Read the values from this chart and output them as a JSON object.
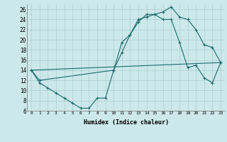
{
  "bg_color": "#cce8ea",
  "grid_color": "#aacfd2",
  "line_color": "#1a6b6b",
  "xlabel": "Humidex (Indice chaleur)",
  "xlim": [
    -0.5,
    23.5
  ],
  "ylim": [
    6,
    27
  ],
  "yticks": [
    6,
    8,
    10,
    12,
    14,
    16,
    18,
    20,
    22,
    24,
    26
  ],
  "xticks": [
    0,
    1,
    2,
    3,
    4,
    5,
    6,
    7,
    8,
    9,
    10,
    11,
    12,
    13,
    14,
    15,
    16,
    17,
    18,
    19,
    20,
    21,
    22,
    23
  ],
  "series1_x": [
    0,
    1,
    2,
    3,
    4,
    5,
    6,
    7,
    8,
    9,
    10,
    11,
    12,
    13,
    14,
    15,
    16,
    17,
    18,
    19,
    20,
    21,
    22,
    23
  ],
  "series1_y": [
    14.0,
    11.5,
    10.5,
    9.5,
    8.5,
    7.5,
    6.5,
    6.5,
    8.5,
    8.5,
    14.0,
    19.5,
    21.0,
    23.5,
    25.0,
    25.0,
    25.5,
    26.5,
    24.5,
    24.0,
    22.0,
    19.0,
    18.5,
    15.5
  ],
  "series2_x": [
    0,
    1,
    10,
    11,
    12,
    13,
    14,
    15,
    16,
    17,
    18,
    19,
    20,
    21,
    22,
    23
  ],
  "series2_y": [
    14.0,
    12.0,
    14.0,
    17.5,
    21.0,
    24.0,
    24.5,
    25.0,
    24.0,
    24.0,
    19.5,
    14.5,
    15.0,
    12.5,
    11.5,
    15.5
  ],
  "series3_x": [
    0,
    23
  ],
  "series3_y": [
    14.0,
    15.5
  ]
}
